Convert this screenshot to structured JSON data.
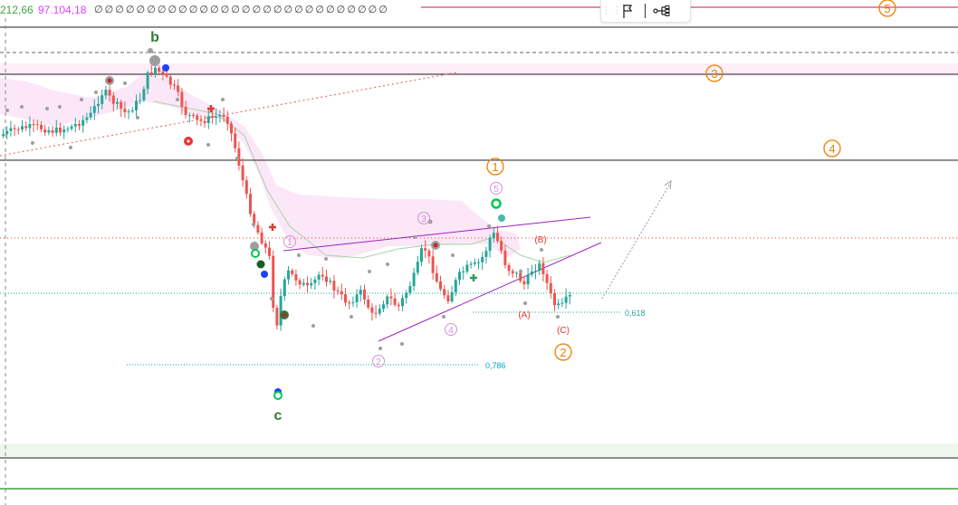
{
  "header": {
    "price_a": "212,66",
    "price_b": "97.104,18",
    "zero_values": "∅ ∅ ∅ ∅ ∅ ∅ ∅ ∅ ∅ ∅ ∅ ∅ ∅ ∅ ∅ ∅ ∅ ∅ ∅ ∅ ∅ ∅ ∅ ∅ ∅ ∅ ∅ ∅"
  },
  "toolbar": {
    "grip_icon": "drag-grip-icon",
    "flag_icon": "flag-icon",
    "settings_icon": "hierarchy-icon"
  },
  "colors": {
    "bull": "#26a69a",
    "bear": "#ef5350",
    "wave_orange": "#f57c00",
    "wave_green": "#2e7d32",
    "wave_violet": "#ba68c8",
    "fib_teal": "#00acc1",
    "channel": "#a020c0",
    "cloud": "#fbe4f6"
  },
  "labels": {
    "wave_b": "b",
    "wave_c": "c",
    "major_1": "1",
    "major_2": "2",
    "major_3": "3",
    "major_4": "4",
    "major_5": "5",
    "minor_1": "1",
    "minor_2": "2",
    "minor_3": "3",
    "minor_4": "4",
    "minor_5": "5",
    "corr_A": "(A)",
    "corr_B": "(B)",
    "corr_C": "(C)",
    "fib_786": "0,786",
    "fib_618": "0,618"
  }
}
